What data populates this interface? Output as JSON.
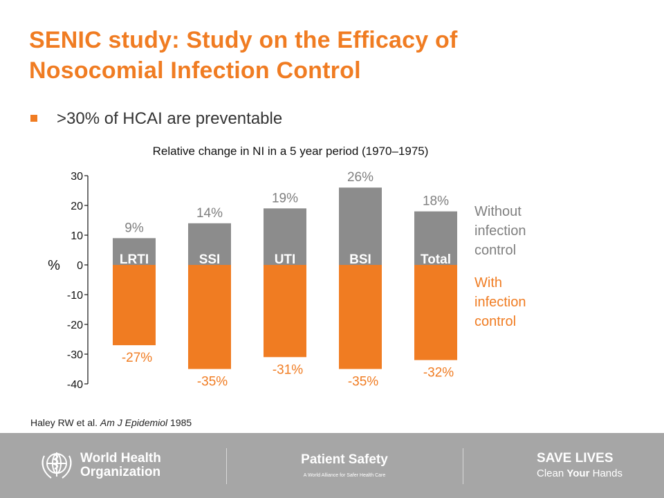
{
  "slide": {
    "title_lines": [
      "SENIC study: Study on the Efficacy of",
      "Nosocomial Infection Control"
    ],
    "bullet": ">30% of HCAI are preventable",
    "citation": {
      "prefix": "Haley RW et al. ",
      "journal": "Am J Epidemiol",
      "year": " 1985"
    }
  },
  "chart_data": {
    "type": "bar",
    "title": "Relative change in NI in a 5 year period (1970–1975)",
    "ylabel": "%",
    "ylim": [
      -40,
      30
    ],
    "yticks": [
      30,
      20,
      10,
      0,
      -10,
      -20,
      -30,
      -40
    ],
    "grid": false,
    "categories": [
      "LRTI",
      "SSI",
      "UTI",
      "BSI",
      "Total"
    ],
    "series": [
      {
        "name": "Without infection control",
        "name_lines": [
          "Without",
          "infection",
          "control"
        ],
        "values": [
          9,
          14,
          19,
          26,
          18
        ],
        "labels": [
          "9%",
          "14%",
          "19%",
          "26%",
          "18%"
        ],
        "color": "#8c8c8c",
        "label_color": "#7f7f7f"
      },
      {
        "name": "With infection control",
        "name_lines": [
          "With",
          "infection",
          "control"
        ],
        "values": [
          -27,
          -35,
          -31,
          -35,
          -32
        ],
        "labels": [
          "-27%",
          "-35%",
          "-31%",
          "-35%",
          "-32%"
        ],
        "color": "#f07c22",
        "label_color": "#f07c22"
      }
    ],
    "legend_position": "right"
  },
  "footer": {
    "org_lines": [
      "World Health",
      "Organization"
    ],
    "patient_safety_title": "Patient Safety",
    "patient_safety_sub": "A World Alliance for Safer Health Care",
    "save_lives": "SAVE LIVES",
    "clean_prefix": "Clean ",
    "clean_bold": "Your",
    "clean_suffix": " Hands",
    "background_color": "#a6a6a6",
    "logo_icon": "who-emblem-icon"
  }
}
